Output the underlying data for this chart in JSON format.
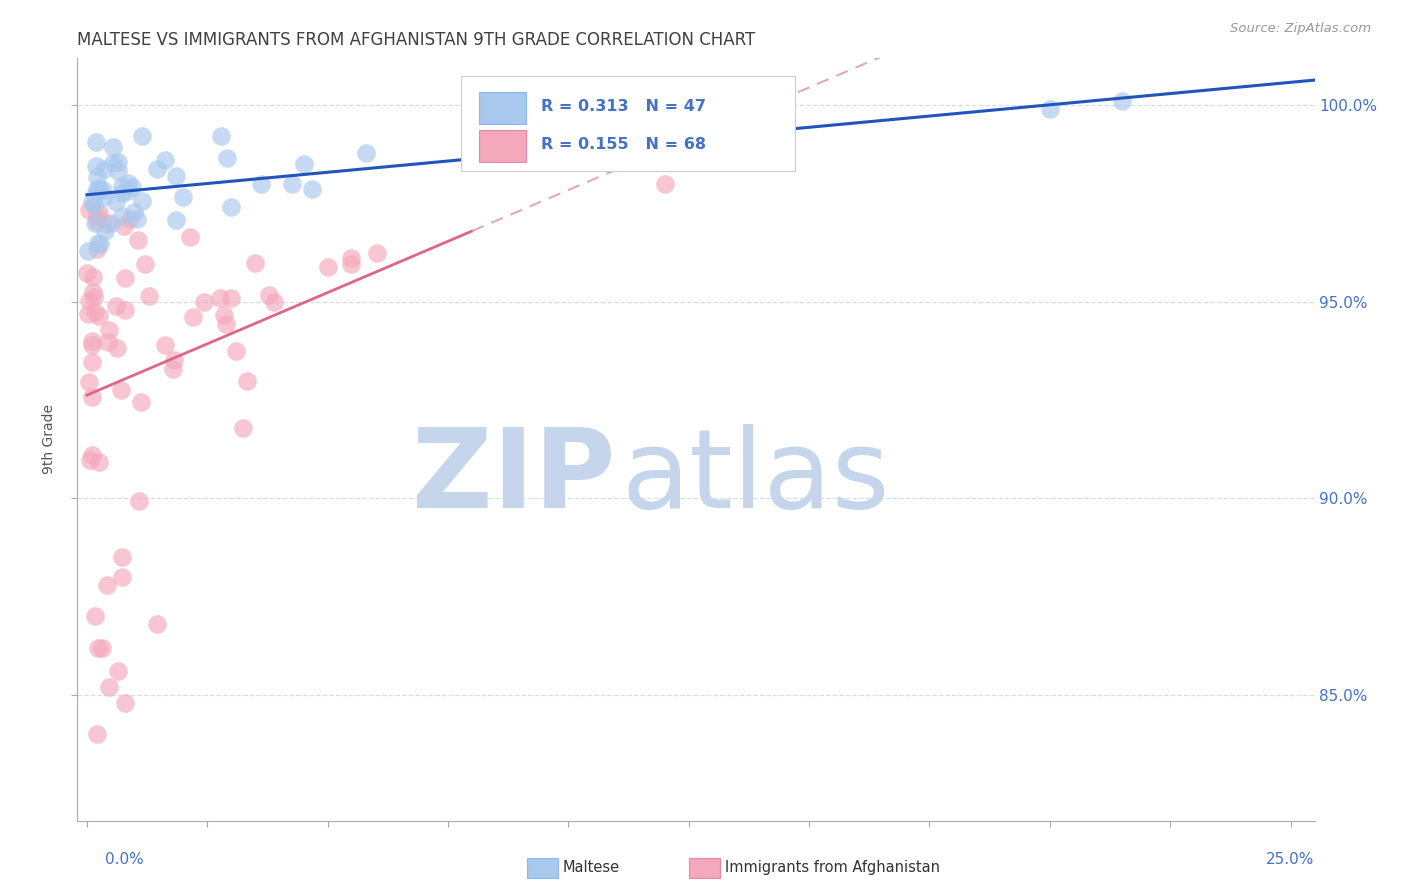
{
  "title": "MALTESE VS IMMIGRANTS FROM AFGHANISTAN 9TH GRADE CORRELATION CHART",
  "source": "Source: ZipAtlas.com",
  "ylabel": "9th Grade",
  "ytick_values": [
    0.85,
    0.9,
    0.95,
    1.0
  ],
  "ylim": [
    0.818,
    1.012
  ],
  "xlim": [
    -0.002,
    0.255
  ],
  "legend_blue_R": "R = 0.313",
  "legend_blue_N": "N = 47",
  "legend_pink_R": "R = 0.155",
  "legend_pink_N": "N = 68",
  "blue_color": "#A8C8EE",
  "pink_color": "#F4A8BB",
  "blue_line_color": "#2255BB",
  "pink_line_color": "#DD6688",
  "pink_dash_color": "#DDAABB",
  "label_color": "#4472C4",
  "watermark_zip_color": "#C5D5EC",
  "watermark_atlas_color": "#C5D5EC",
  "grid_color": "#D8DCE8",
  "title_color": "#404040",
  "source_color": "#999999"
}
